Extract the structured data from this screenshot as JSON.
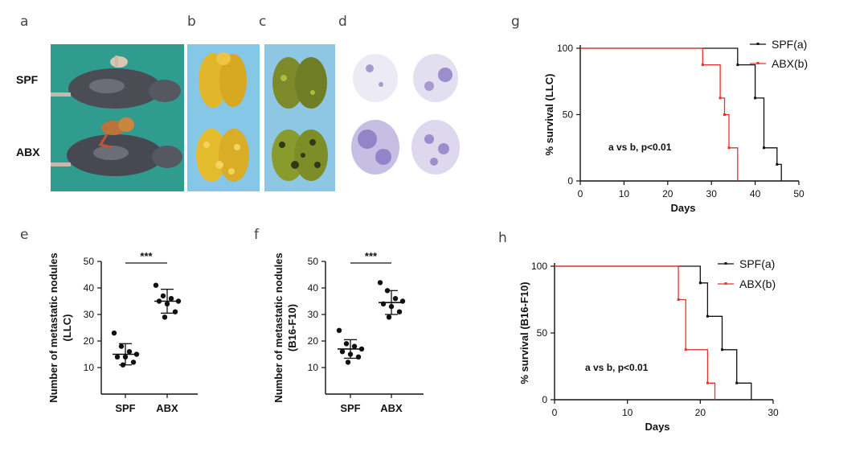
{
  "panels": {
    "a": "a",
    "b": "b",
    "c": "c",
    "d": "d",
    "e": "e",
    "f": "f",
    "g": "g",
    "h": "h"
  },
  "photo_rows": {
    "spf": "SPF",
    "abx": "ABX"
  },
  "colors": {
    "spf": "#111111",
    "abx": "#e8322a",
    "photo_bg_a": "#2f9c8f",
    "photo_bg_b": "#86c6e6",
    "nodule_stain": "#8e7fc2"
  },
  "chart_data": [
    {
      "id": "e",
      "type": "scatter",
      "ylabel_lines": [
        "Number of metastatic nodules",
        "(LLC)"
      ],
      "categories": [
        "SPF",
        "ABX"
      ],
      "ylim": [
        0,
        50
      ],
      "yticks": [
        10,
        20,
        30,
        40,
        50
      ],
      "significance": "***",
      "groups": [
        {
          "category": "SPF",
          "values": [
            23,
            18,
            16,
            15,
            14,
            14,
            12,
            11
          ],
          "mean": 15,
          "sd": 4
        },
        {
          "category": "ABX",
          "values": [
            41,
            37,
            36,
            35,
            35,
            34,
            31,
            29
          ],
          "mean": 35,
          "sd": 4.5
        }
      ]
    },
    {
      "id": "f",
      "type": "scatter",
      "ylabel_lines": [
        "Number of metastatic nodules",
        "(B16-F10)"
      ],
      "categories": [
        "SPF",
        "ABX"
      ],
      "ylim": [
        0,
        50
      ],
      "yticks": [
        10,
        20,
        30,
        40,
        50
      ],
      "significance": "***",
      "groups": [
        {
          "category": "SPF",
          "values": [
            24,
            19,
            18,
            17,
            16,
            15,
            14,
            12
          ],
          "mean": 17,
          "sd": 3.5
        },
        {
          "category": "ABX",
          "values": [
            42,
            39,
            36,
            35,
            34,
            33,
            31,
            29
          ],
          "mean": 34.5,
          "sd": 4.5
        }
      ]
    },
    {
      "id": "g",
      "type": "line",
      "subtype": "kaplan-meier",
      "ylabel": "% survival (LLC)",
      "xlabel": "Days",
      "xlim": [
        0,
        50
      ],
      "xticks": [
        0,
        10,
        20,
        30,
        40,
        50
      ],
      "ylim": [
        0,
        100
      ],
      "yticks": [
        0,
        50,
        100
      ],
      "annotation": "a vs b, p<0.01",
      "legend_position": "top-right",
      "series": [
        {
          "name": "SPF(a)",
          "color": "#111111",
          "steps": [
            [
              0,
              100
            ],
            [
              36,
              100
            ],
            [
              36,
              87.5
            ],
            [
              40,
              87.5
            ],
            [
              40,
              62.5
            ],
            [
              42,
              62.5
            ],
            [
              42,
              25
            ],
            [
              45,
              25
            ],
            [
              45,
              12.5
            ],
            [
              46,
              12.5
            ],
            [
              46,
              0
            ]
          ],
          "censor": [
            [
              36,
              87.5
            ],
            [
              40,
              62.5
            ],
            [
              42,
              25
            ],
            [
              45,
              12.5
            ]
          ]
        },
        {
          "name": "ABX(b)",
          "color": "#e8322a",
          "steps": [
            [
              0,
              100
            ],
            [
              28,
              100
            ],
            [
              28,
              87.5
            ],
            [
              32,
              87.5
            ],
            [
              32,
              62.5
            ],
            [
              33,
              62.5
            ],
            [
              33,
              50
            ],
            [
              34,
              50
            ],
            [
              34,
              25
            ],
            [
              36,
              25
            ],
            [
              36,
              0
            ]
          ],
          "censor": [
            [
              28,
              87.5
            ],
            [
              32,
              62.5
            ],
            [
              33,
              50
            ],
            [
              34,
              25
            ]
          ]
        }
      ]
    },
    {
      "id": "h",
      "type": "line",
      "subtype": "kaplan-meier",
      "ylabel": "% survival (B16-F10)",
      "xlabel": "Days",
      "xlim": [
        0,
        30
      ],
      "xticks": [
        0,
        10,
        20,
        30
      ],
      "ylim": [
        0,
        100
      ],
      "yticks": [
        0,
        50,
        100
      ],
      "annotation": "a vs b, p<0.01",
      "legend_position": "top-right",
      "series": [
        {
          "name": "SPF(a)",
          "color": "#111111",
          "steps": [
            [
              0,
              100
            ],
            [
              20,
              100
            ],
            [
              20,
              87.5
            ],
            [
              21,
              87.5
            ],
            [
              21,
              62.5
            ],
            [
              23,
              62.5
            ],
            [
              23,
              37.5
            ],
            [
              25,
              37.5
            ],
            [
              25,
              12.5
            ],
            [
              27,
              12.5
            ],
            [
              27,
              0
            ]
          ],
          "censor": [
            [
              20,
              87.5
            ],
            [
              21,
              62.5
            ],
            [
              23,
              37.5
            ],
            [
              25,
              12.5
            ]
          ]
        },
        {
          "name": "ABX(b)",
          "color": "#e8322a",
          "steps": [
            [
              0,
              100
            ],
            [
              17,
              100
            ],
            [
              17,
              75
            ],
            [
              18,
              75
            ],
            [
              18,
              37.5
            ],
            [
              21,
              37.5
            ],
            [
              21,
              12.5
            ],
            [
              22,
              12.5
            ],
            [
              22,
              0
            ]
          ],
          "censor": [
            [
              17,
              75
            ],
            [
              18,
              37.5
            ],
            [
              21,
              12.5
            ]
          ]
        }
      ]
    }
  ]
}
